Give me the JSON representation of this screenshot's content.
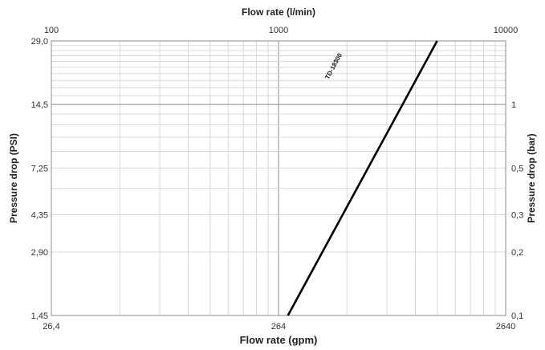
{
  "chart_data": {
    "type": "line",
    "x_scale": "log",
    "y_scale": "log",
    "grid": true,
    "top_axis": {
      "title": "Flow rate (l/min)",
      "range": [
        100,
        10000
      ],
      "ticks": [
        {
          "value": 100,
          "label": "100"
        },
        {
          "value": 1000,
          "label": "1000"
        },
        {
          "value": 10000,
          "label": "10000"
        }
      ]
    },
    "bottom_axis": {
      "title": "Flow rate (gpm)",
      "range": [
        26.4,
        2640
      ],
      "ticks": [
        {
          "value": 26.4,
          "label": "26,4"
        },
        {
          "value": 264,
          "label": "264"
        },
        {
          "value": 2640,
          "label": "2640"
        }
      ]
    },
    "left_axis": {
      "title": "Pressure drop (PSI)",
      "range": [
        1.45,
        29.0
      ],
      "ticks": [
        {
          "value": 1.45,
          "label": "1,45"
        },
        {
          "value": 2.9,
          "label": "2,90"
        },
        {
          "value": 4.35,
          "label": "4,35"
        },
        {
          "value": 7.25,
          "label": "7,25"
        },
        {
          "value": 14.5,
          "label": "14,5"
        },
        {
          "value": 29.0,
          "label": "29,0"
        }
      ]
    },
    "right_axis": {
      "title": "Pressure drop (bar)",
      "range": [
        0.1,
        2.0
      ],
      "ticks": [
        {
          "value": 0.1,
          "label": "0,1"
        },
        {
          "value": 0.2,
          "label": "0,2"
        },
        {
          "value": 0.3,
          "label": "0,3"
        },
        {
          "value": 0.5,
          "label": "0,5"
        },
        {
          "value": 1,
          "label": "1"
        }
      ]
    },
    "series": [
      {
        "name": "TD-18300",
        "color": "#000000",
        "points": [
          {
            "x_lmin": 1100,
            "y_bar": 0.1
          },
          {
            "x_lmin": 4990,
            "y_bar": 2.0
          }
        ]
      }
    ]
  }
}
